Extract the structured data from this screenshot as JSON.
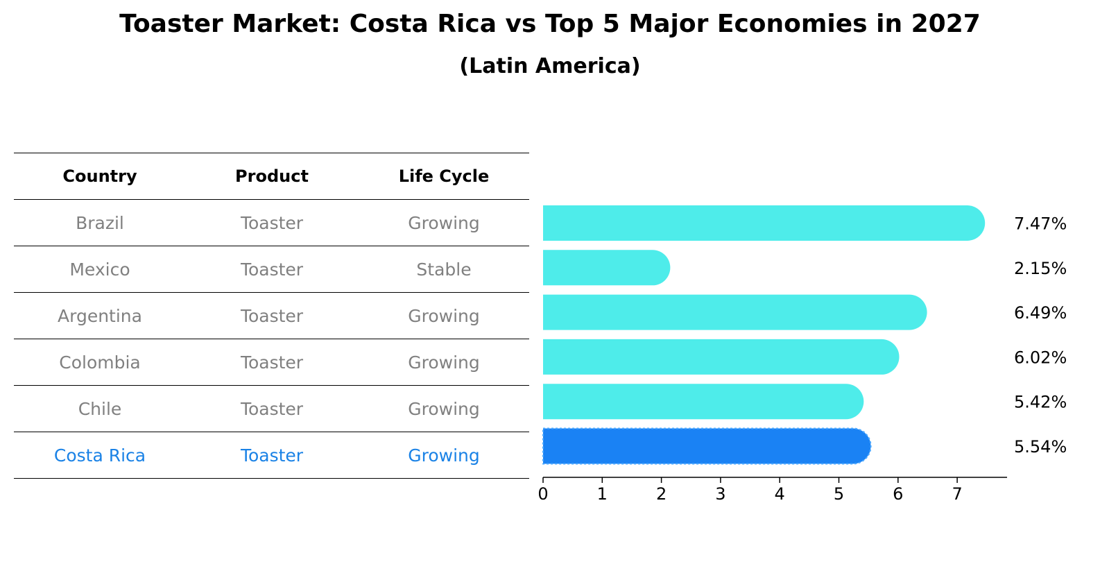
{
  "header": {
    "title": "Toaster Market: Costa Rica vs Top 5 Major Economies in 2027",
    "subtitle": "(Latin America)"
  },
  "table": {
    "columns": [
      "Country",
      "Product",
      "Life Cycle"
    ],
    "rows": [
      {
        "country": "Brazil",
        "product": "Toaster",
        "life_cycle": "Growing"
      },
      {
        "country": "Mexico",
        "product": "Toaster",
        "life_cycle": "Stable"
      },
      {
        "country": "Argentina",
        "product": "Toaster",
        "life_cycle": "Growing"
      },
      {
        "country": "Colombia",
        "product": "Toaster",
        "life_cycle": "Growing"
      },
      {
        "country": "Chile",
        "product": "Toaster",
        "life_cycle": "Growing"
      },
      {
        "country": "Costa Rica",
        "product": "Toaster",
        "life_cycle": "Growing"
      }
    ]
  },
  "colors": {
    "bar": "#4eecea",
    "highlight_bar": "#1a82f4",
    "row_text": "#808080",
    "highlight_text": "#1a82e6"
  },
  "chart_data": {
    "type": "bar",
    "orientation": "horizontal",
    "categories": [
      "Brazil",
      "Mexico",
      "Argentina",
      "Colombia",
      "Chile",
      "Costa Rica"
    ],
    "values": [
      7.47,
      2.15,
      6.49,
      6.02,
      5.42,
      5.54
    ],
    "value_labels": [
      "7.47%",
      "2.15%",
      "6.49%",
      "6.02%",
      "5.42%",
      "5.54%"
    ],
    "highlight": "Costa Rica",
    "xlim": [
      0,
      7.84
    ],
    "xticks": [
      "0",
      "1",
      "2",
      "3",
      "4",
      "5",
      "6",
      "7"
    ],
    "xlabel": "",
    "ylabel": ""
  }
}
